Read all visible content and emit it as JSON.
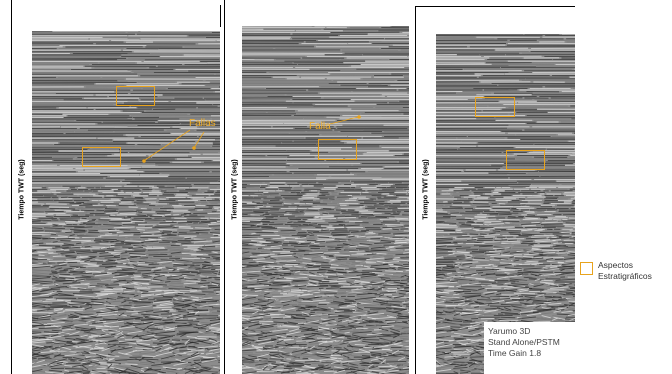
{
  "panels": [
    {
      "ylabel": "Tiempo TWT (seg)",
      "callout": "Fallas"
    },
    {
      "ylabel": "Tiempo TWT (seg)",
      "callout": "Falla"
    },
    {
      "ylabel": "Tiempo TWT (seg)",
      "callout": ""
    }
  ],
  "legend": {
    "line1": "Aspectos",
    "line2": "Estratigráficos"
  },
  "info": {
    "line1": "Yarumo 3D",
    "line2": "Stand Alone/PSTM",
    "line3": "Time Gain 1.8"
  },
  "colors": {
    "annotation": "#e8a31d",
    "callout_text": "#f3b02a"
  }
}
